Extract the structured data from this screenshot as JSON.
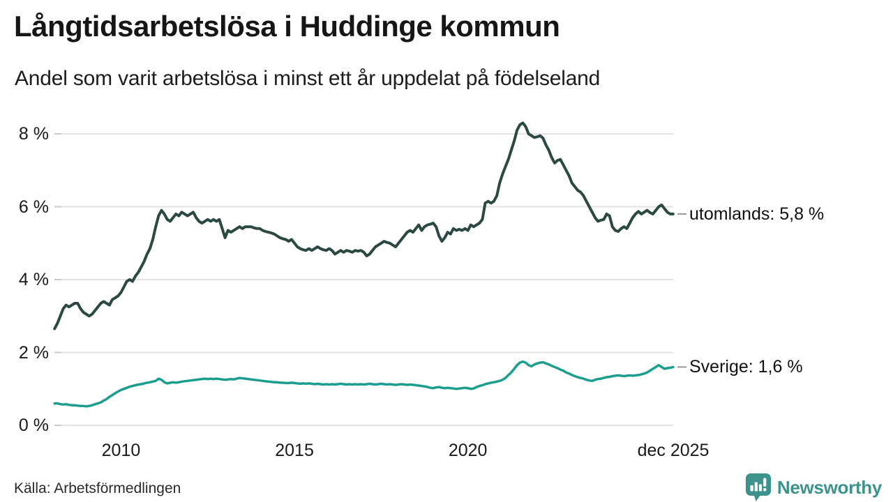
{
  "header": {
    "title": "Långtidsarbetslösa i Huddinge kommun",
    "subtitle": "Andel som varit arbetslösa i minst ett år uppdelat på födelseland"
  },
  "footer": {
    "source": "Källa: Arbetsförmedlingen",
    "brand": {
      "name": "Newsworthy",
      "icon": "newsworthy-speech-bubble-bars-logo",
      "color": "#3b938c"
    }
  },
  "chart_data": {
    "type": "line",
    "title": "Långtidsarbetslösa i Huddinge kommun",
    "subtitle": "Andel som varit arbetslösa i minst ett år uppdelat på födelseland",
    "source": "Källa: Arbetsförmedlingen",
    "grid": "horizontal-only",
    "legend_position": "end-of-line-labels-right",
    "colors": {
      "grid": "#e3e3e6",
      "grid_stub": "#c9c9ce",
      "leader_dash": "#999999",
      "text": "#1a1a1a"
    },
    "x_axis": {
      "min": 2008.08,
      "max": 2025.92,
      "ticks": [
        {
          "label": "2010",
          "value": 2010.0
        },
        {
          "label": "2015",
          "value": 2015.0
        },
        {
          "label": "2020",
          "value": 2020.0
        },
        {
          "label": "dec 2025",
          "value": 2025.92
        }
      ]
    },
    "y_axis": {
      "min": 0,
      "max": 8.6,
      "unit": "%",
      "ticks": [
        {
          "label": "0 %",
          "value": 0
        },
        {
          "label": "2 %",
          "value": 2
        },
        {
          "label": "4 %",
          "value": 4
        },
        {
          "label": "6 %",
          "value": 6
        },
        {
          "label": "8 %",
          "value": 8
        }
      ]
    },
    "series": [
      {
        "name": "utomlands",
        "end_label": "utomlands: 5,8 %",
        "last_value_display": "5,8 %",
        "color": "#2b4843",
        "stroke_width": 4,
        "start_year": 2008,
        "start_month": 2,
        "monthly_values": [
          2.65,
          2.8,
          3.0,
          3.2,
          3.3,
          3.25,
          3.3,
          3.35,
          3.35,
          3.2,
          3.1,
          3.05,
          3.0,
          3.05,
          3.15,
          3.25,
          3.35,
          3.4,
          3.35,
          3.3,
          3.45,
          3.5,
          3.55,
          3.65,
          3.8,
          3.95,
          4.0,
          3.95,
          4.1,
          4.2,
          4.35,
          4.5,
          4.7,
          4.85,
          5.1,
          5.45,
          5.75,
          5.9,
          5.8,
          5.65,
          5.6,
          5.7,
          5.8,
          5.75,
          5.85,
          5.8,
          5.75,
          5.8,
          5.85,
          5.7,
          5.6,
          5.55,
          5.6,
          5.65,
          5.6,
          5.65,
          5.6,
          5.65,
          5.4,
          5.15,
          5.35,
          5.3,
          5.35,
          5.4,
          5.45,
          5.4,
          5.45,
          5.45,
          5.45,
          5.42,
          5.4,
          5.4,
          5.35,
          5.32,
          5.3,
          5.28,
          5.25,
          5.2,
          5.15,
          5.12,
          5.1,
          5.05,
          5.1,
          5.0,
          4.9,
          4.85,
          4.82,
          4.8,
          4.85,
          4.8,
          4.85,
          4.9,
          4.85,
          4.82,
          4.8,
          4.85,
          4.8,
          4.7,
          4.75,
          4.8,
          4.75,
          4.8,
          4.78,
          4.75,
          4.8,
          4.78,
          4.8,
          4.75,
          4.65,
          4.7,
          4.8,
          4.9,
          4.95,
          5.0,
          5.05,
          5.02,
          5.0,
          4.95,
          4.9,
          5.0,
          5.1,
          5.2,
          5.3,
          5.35,
          5.3,
          5.4,
          5.5,
          5.35,
          5.45,
          5.5,
          5.52,
          5.55,
          5.45,
          5.2,
          5.05,
          5.15,
          5.3,
          5.25,
          5.4,
          5.35,
          5.38,
          5.35,
          5.4,
          5.35,
          5.5,
          5.45,
          5.5,
          5.55,
          5.65,
          6.1,
          6.15,
          6.1,
          6.15,
          6.3,
          6.65,
          6.9,
          7.1,
          7.3,
          7.55,
          7.8,
          8.1,
          8.25,
          8.3,
          8.2,
          8.0,
          7.95,
          7.9,
          7.92,
          7.95,
          7.88,
          7.7,
          7.55,
          7.35,
          7.2,
          7.27,
          7.3,
          7.15,
          7.0,
          6.85,
          6.65,
          6.55,
          6.45,
          6.4,
          6.3,
          6.15,
          6.0,
          5.85,
          5.7,
          5.6,
          5.63,
          5.65,
          5.8,
          5.75,
          5.45,
          5.35,
          5.32,
          5.4,
          5.45,
          5.4,
          5.55,
          5.7,
          5.8,
          5.87,
          5.8,
          5.85,
          5.9,
          5.84,
          5.8,
          5.9,
          6.0,
          6.05,
          5.95,
          5.85,
          5.8,
          5.8
        ]
      },
      {
        "name": "Sverige",
        "end_label": "Sverige: 1,6 %",
        "last_value_display": "1,6 %",
        "color": "#1b9e8e",
        "stroke_width": 3.5,
        "start_year": 2008,
        "start_month": 2,
        "monthly_values": [
          0.6,
          0.6,
          0.58,
          0.57,
          0.58,
          0.56,
          0.55,
          0.55,
          0.54,
          0.53,
          0.53,
          0.52,
          0.53,
          0.55,
          0.58,
          0.6,
          0.63,
          0.68,
          0.72,
          0.78,
          0.83,
          0.88,
          0.93,
          0.97,
          1.0,
          1.03,
          1.06,
          1.08,
          1.1,
          1.12,
          1.13,
          1.15,
          1.17,
          1.18,
          1.2,
          1.22,
          1.28,
          1.25,
          1.18,
          1.15,
          1.17,
          1.18,
          1.17,
          1.18,
          1.2,
          1.21,
          1.22,
          1.23,
          1.24,
          1.25,
          1.26,
          1.27,
          1.28,
          1.27,
          1.28,
          1.27,
          1.28,
          1.27,
          1.26,
          1.25,
          1.26,
          1.27,
          1.26,
          1.28,
          1.3,
          1.29,
          1.28,
          1.27,
          1.26,
          1.25,
          1.24,
          1.23,
          1.22,
          1.21,
          1.2,
          1.19,
          1.18,
          1.18,
          1.17,
          1.17,
          1.16,
          1.16,
          1.17,
          1.16,
          1.15,
          1.14,
          1.15,
          1.14,
          1.15,
          1.14,
          1.13,
          1.14,
          1.13,
          1.12,
          1.13,
          1.12,
          1.13,
          1.12,
          1.13,
          1.14,
          1.13,
          1.12,
          1.13,
          1.12,
          1.13,
          1.12,
          1.13,
          1.12,
          1.13,
          1.14,
          1.13,
          1.12,
          1.13,
          1.14,
          1.13,
          1.12,
          1.13,
          1.12,
          1.11,
          1.12,
          1.13,
          1.12,
          1.11,
          1.12,
          1.11,
          1.1,
          1.09,
          1.08,
          1.07,
          1.05,
          1.03,
          1.02,
          1.04,
          1.05,
          1.03,
          1.02,
          1.03,
          1.02,
          1.01,
          1.0,
          1.01,
          1.02,
          1.03,
          1.02,
          1.0,
          1.01,
          1.05,
          1.08,
          1.1,
          1.13,
          1.15,
          1.17,
          1.18,
          1.2,
          1.22,
          1.25,
          1.3,
          1.38,
          1.45,
          1.55,
          1.65,
          1.72,
          1.75,
          1.72,
          1.65,
          1.62,
          1.67,
          1.7,
          1.72,
          1.73,
          1.7,
          1.67,
          1.63,
          1.6,
          1.57,
          1.53,
          1.5,
          1.45,
          1.42,
          1.38,
          1.35,
          1.32,
          1.3,
          1.28,
          1.25,
          1.23,
          1.22,
          1.25,
          1.27,
          1.28,
          1.3,
          1.32,
          1.33,
          1.35,
          1.36,
          1.37,
          1.36,
          1.35,
          1.36,
          1.37,
          1.36,
          1.37,
          1.38,
          1.4,
          1.42,
          1.45,
          1.5,
          1.55,
          1.6,
          1.65,
          1.6,
          1.55,
          1.57,
          1.58,
          1.6
        ]
      }
    ]
  }
}
